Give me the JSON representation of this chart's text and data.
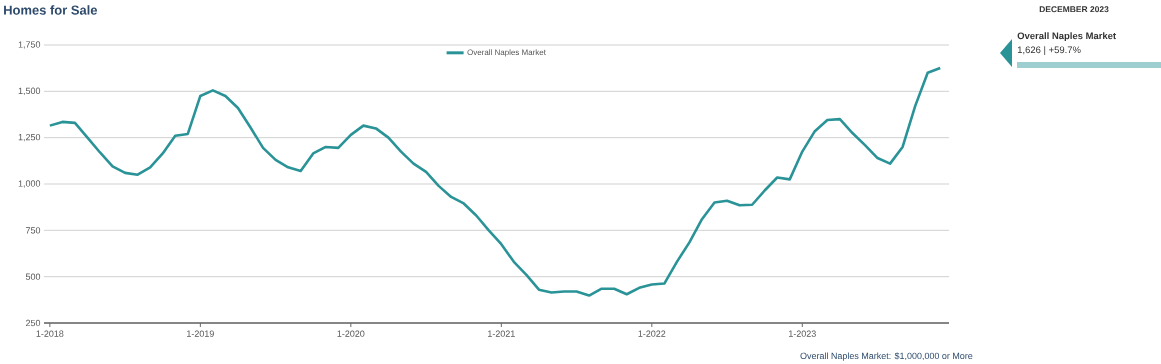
{
  "chart_data": {
    "type": "line",
    "title": "Homes for Sale",
    "x": [
      "2018-01",
      "2018-02",
      "2018-03",
      "2018-04",
      "2018-05",
      "2018-06",
      "2018-07",
      "2018-08",
      "2018-09",
      "2018-10",
      "2018-11",
      "2018-12",
      "2019-01",
      "2019-02",
      "2019-03",
      "2019-04",
      "2019-05",
      "2019-06",
      "2019-07",
      "2019-08",
      "2019-09",
      "2019-10",
      "2019-11",
      "2019-12",
      "2020-01",
      "2020-02",
      "2020-03",
      "2020-04",
      "2020-05",
      "2020-06",
      "2020-07",
      "2020-08",
      "2020-09",
      "2020-10",
      "2020-11",
      "2020-12",
      "2021-01",
      "2021-02",
      "2021-03",
      "2021-04",
      "2021-05",
      "2021-06",
      "2021-07",
      "2021-08",
      "2021-09",
      "2021-10",
      "2021-11",
      "2021-12",
      "2022-01",
      "2022-02",
      "2022-03",
      "2022-04",
      "2022-05",
      "2022-06",
      "2022-07",
      "2022-08",
      "2022-09",
      "2022-10",
      "2022-11",
      "2022-12",
      "2023-01",
      "2023-02",
      "2023-03",
      "2023-04",
      "2023-05",
      "2023-06",
      "2023-07",
      "2023-08",
      "2023-09",
      "2023-10",
      "2023-11",
      "2023-12"
    ],
    "series": [
      {
        "name": "Overall Naples Market",
        "color": "#2a9397",
        "values": [
          1315,
          1335,
          1330,
          1250,
          1170,
          1095,
          1060,
          1050,
          1090,
          1165,
          1260,
          1270,
          1475,
          1505,
          1475,
          1410,
          1305,
          1195,
          1130,
          1090,
          1070,
          1165,
          1200,
          1195,
          1265,
          1315,
          1300,
          1250,
          1175,
          1110,
          1065,
          990,
          930,
          895,
          830,
          750,
          675,
          580,
          510,
          430,
          415,
          420,
          420,
          398,
          435,
          435,
          405,
          440,
          458,
          463,
          580,
          685,
          810,
          900,
          910,
          885,
          888,
          965,
          1035,
          1025,
          1175,
          1285,
          1345,
          1350,
          1275,
          1210,
          1140,
          1110,
          1200,
          1420,
          1600,
          1626
        ]
      }
    ],
    "xlim": [
      "2017-12-17",
      "2023-12-22"
    ],
    "xticks": [
      {
        "value": "2018-01",
        "label": "1-2018"
      },
      {
        "value": "2019-01",
        "label": "1-2019"
      },
      {
        "value": "2020-01",
        "label": "1-2020"
      },
      {
        "value": "2021-01",
        "label": "1-2021"
      },
      {
        "value": "2022-01",
        "label": "1-2022"
      },
      {
        "value": "2023-01",
        "label": "1-2023"
      }
    ],
    "ylim": [
      250,
      1750
    ],
    "yticks": [
      {
        "value": 250,
        "label": "250"
      },
      {
        "value": 500,
        "label": "500"
      },
      {
        "value": 750,
        "label": "750"
      },
      {
        "value": 1000,
        "label": "1,000"
      },
      {
        "value": 1250,
        "label": "1,250"
      },
      {
        "value": 1500,
        "label": "1,500"
      },
      {
        "value": 1750,
        "label": "1,750"
      }
    ],
    "grid": "y",
    "legend": "top",
    "line_style": "solid",
    "annotations": [
      "DECEMBER 2023",
      "Overall Naples Market",
      "1,626 | +59.7%",
      "Overall Naples Market: $1,000,000 or More"
    ]
  }
}
